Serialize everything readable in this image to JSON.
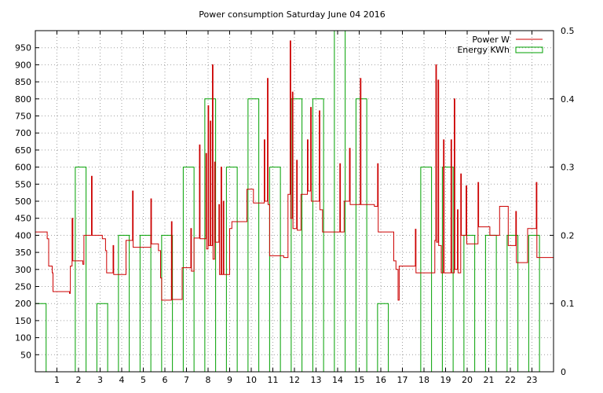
{
  "chart_data": {
    "type": "line",
    "title": "Power consumption Saturday June 04 2016",
    "xlabel": "",
    "ylabel": "",
    "xlim": [
      0,
      24
    ],
    "ylim": [
      0,
      1000
    ],
    "y2lim": [
      0,
      0.5
    ],
    "grid": true,
    "legend_position": "top-right",
    "x_ticks": [
      1,
      2,
      3,
      4,
      5,
      6,
      7,
      8,
      9,
      10,
      11,
      12,
      13,
      14,
      15,
      16,
      17,
      18,
      19,
      20,
      21,
      22,
      23
    ],
    "y_ticks": [
      50,
      100,
      150,
      200,
      250,
      300,
      350,
      400,
      450,
      500,
      550,
      600,
      650,
      700,
      750,
      800,
      850,
      900,
      950
    ],
    "y2_ticks": [
      0,
      0.1,
      0.2,
      0.3,
      0.4,
      0.5
    ],
    "series": [
      {
        "name": "Power W",
        "color": "#cc0000",
        "axis": "left",
        "points": [
          [
            0.0,
            410
          ],
          [
            0.55,
            410
          ],
          [
            0.55,
            390
          ],
          [
            0.62,
            390
          ],
          [
            0.62,
            310
          ],
          [
            0.78,
            310
          ],
          [
            0.78,
            290
          ],
          [
            0.82,
            290
          ],
          [
            0.82,
            235
          ],
          [
            1.58,
            235
          ],
          [
            1.58,
            230
          ],
          [
            1.62,
            230
          ],
          [
            1.62,
            310
          ],
          [
            1.7,
            310
          ],
          [
            1.7,
            450
          ],
          [
            1.74,
            450
          ],
          [
            1.74,
            325
          ],
          [
            2.2,
            325
          ],
          [
            2.2,
            315
          ],
          [
            2.25,
            315
          ],
          [
            2.25,
            400
          ],
          [
            2.6,
            400
          ],
          [
            2.6,
            573
          ],
          [
            2.63,
            573
          ],
          [
            2.63,
            400
          ],
          [
            3.1,
            400
          ],
          [
            3.1,
            390
          ],
          [
            3.25,
            390
          ],
          [
            3.25,
            355
          ],
          [
            3.3,
            355
          ],
          [
            3.3,
            290
          ],
          [
            3.6,
            290
          ],
          [
            3.6,
            370
          ],
          [
            3.63,
            370
          ],
          [
            3.63,
            285
          ],
          [
            4.2,
            285
          ],
          [
            4.2,
            385
          ],
          [
            4.5,
            385
          ],
          [
            4.5,
            530
          ],
          [
            4.53,
            530
          ],
          [
            4.53,
            365
          ],
          [
            5.35,
            365
          ],
          [
            5.35,
            507
          ],
          [
            5.38,
            507
          ],
          [
            5.38,
            375
          ],
          [
            5.7,
            375
          ],
          [
            5.7,
            355
          ],
          [
            5.8,
            355
          ],
          [
            5.8,
            275
          ],
          [
            5.85,
            275
          ],
          [
            5.85,
            210
          ],
          [
            6.3,
            210
          ],
          [
            6.3,
            440
          ],
          [
            6.33,
            440
          ],
          [
            6.33,
            212
          ],
          [
            6.8,
            212
          ],
          [
            6.8,
            305
          ],
          [
            7.2,
            305
          ],
          [
            7.2,
            420
          ],
          [
            7.23,
            420
          ],
          [
            7.23,
            295
          ],
          [
            7.35,
            295
          ],
          [
            7.35,
            392
          ],
          [
            7.6,
            392
          ],
          [
            7.6,
            665
          ],
          [
            7.63,
            665
          ],
          [
            7.63,
            390
          ],
          [
            7.9,
            390
          ],
          [
            7.9,
            640
          ],
          [
            7.93,
            640
          ],
          [
            7.93,
            360
          ],
          [
            8.0,
            360
          ],
          [
            8.0,
            780
          ],
          [
            8.03,
            780
          ],
          [
            8.03,
            370
          ],
          [
            8.1,
            370
          ],
          [
            8.1,
            735
          ],
          [
            8.13,
            735
          ],
          [
            8.13,
            370
          ],
          [
            8.2,
            370
          ],
          [
            8.2,
            900
          ],
          [
            8.23,
            900
          ],
          [
            8.23,
            330
          ],
          [
            8.3,
            330
          ],
          [
            8.3,
            615
          ],
          [
            8.33,
            615
          ],
          [
            8.33,
            380
          ],
          [
            8.5,
            380
          ],
          [
            8.5,
            490
          ],
          [
            8.53,
            490
          ],
          [
            8.53,
            285
          ],
          [
            8.6,
            285
          ],
          [
            8.6,
            600
          ],
          [
            8.63,
            600
          ],
          [
            8.63,
            285
          ],
          [
            8.7,
            285
          ],
          [
            8.7,
            500
          ],
          [
            8.73,
            500
          ],
          [
            8.73,
            285
          ],
          [
            9.0,
            285
          ],
          [
            9.0,
            420
          ],
          [
            9.1,
            420
          ],
          [
            9.1,
            440
          ],
          [
            9.8,
            440
          ],
          [
            9.8,
            535
          ],
          [
            10.1,
            535
          ],
          [
            10.1,
            495
          ],
          [
            10.6,
            495
          ],
          [
            10.6,
            680
          ],
          [
            10.63,
            680
          ],
          [
            10.63,
            500
          ],
          [
            10.75,
            500
          ],
          [
            10.75,
            860
          ],
          [
            10.78,
            860
          ],
          [
            10.78,
            490
          ],
          [
            10.85,
            490
          ],
          [
            10.85,
            340
          ],
          [
            11.5,
            340
          ],
          [
            11.5,
            335
          ],
          [
            11.7,
            335
          ],
          [
            11.7,
            520
          ],
          [
            11.8,
            520
          ],
          [
            11.8,
            970
          ],
          [
            11.83,
            970
          ],
          [
            11.83,
            450
          ],
          [
            11.9,
            450
          ],
          [
            11.9,
            820
          ],
          [
            11.93,
            820
          ],
          [
            11.93,
            420
          ],
          [
            12.1,
            420
          ],
          [
            12.1,
            620
          ],
          [
            12.13,
            620
          ],
          [
            12.13,
            415
          ],
          [
            12.3,
            415
          ],
          [
            12.3,
            520
          ],
          [
            12.6,
            520
          ],
          [
            12.6,
            680
          ],
          [
            12.63,
            680
          ],
          [
            12.63,
            530
          ],
          [
            12.75,
            530
          ],
          [
            12.75,
            775
          ],
          [
            12.78,
            775
          ],
          [
            12.78,
            500
          ],
          [
            13.15,
            500
          ],
          [
            13.15,
            765
          ],
          [
            13.18,
            765
          ],
          [
            13.18,
            475
          ],
          [
            13.3,
            475
          ],
          [
            13.3,
            410
          ],
          [
            14.1,
            410
          ],
          [
            14.1,
            610
          ],
          [
            14.13,
            610
          ],
          [
            14.13,
            410
          ],
          [
            14.3,
            410
          ],
          [
            14.3,
            500
          ],
          [
            14.55,
            500
          ],
          [
            14.55,
            655
          ],
          [
            14.58,
            655
          ],
          [
            14.58,
            490
          ],
          [
            15.05,
            490
          ],
          [
            15.05,
            860
          ],
          [
            15.08,
            860
          ],
          [
            15.08,
            490
          ],
          [
            15.7,
            490
          ],
          [
            15.7,
            485
          ],
          [
            15.85,
            485
          ],
          [
            15.85,
            610
          ],
          [
            15.88,
            610
          ],
          [
            15.88,
            410
          ],
          [
            16.6,
            410
          ],
          [
            16.6,
            325
          ],
          [
            16.7,
            325
          ],
          [
            16.7,
            300
          ],
          [
            16.8,
            300
          ],
          [
            16.8,
            210
          ],
          [
            16.85,
            210
          ],
          [
            16.85,
            310
          ],
          [
            17.6,
            310
          ],
          [
            17.6,
            418
          ],
          [
            17.63,
            418
          ],
          [
            17.63,
            290
          ],
          [
            18.5,
            290
          ],
          [
            18.5,
            385
          ],
          [
            18.55,
            385
          ],
          [
            18.55,
            900
          ],
          [
            18.58,
            900
          ],
          [
            18.58,
            380
          ],
          [
            18.65,
            380
          ],
          [
            18.65,
            855
          ],
          [
            18.68,
            855
          ],
          [
            18.68,
            370
          ],
          [
            18.8,
            370
          ],
          [
            18.8,
            290
          ],
          [
            18.9,
            290
          ],
          [
            18.9,
            680
          ],
          [
            18.93,
            680
          ],
          [
            18.93,
            290
          ],
          [
            19.25,
            290
          ],
          [
            19.25,
            680
          ],
          [
            19.28,
            680
          ],
          [
            19.28,
            290
          ],
          [
            19.4,
            290
          ],
          [
            19.4,
            800
          ],
          [
            19.43,
            800
          ],
          [
            19.43,
            300
          ],
          [
            19.55,
            300
          ],
          [
            19.55,
            475
          ],
          [
            19.58,
            475
          ],
          [
            19.58,
            290
          ],
          [
            19.7,
            290
          ],
          [
            19.7,
            580
          ],
          [
            19.73,
            580
          ],
          [
            19.73,
            400
          ],
          [
            19.95,
            400
          ],
          [
            19.95,
            545
          ],
          [
            19.98,
            545
          ],
          [
            19.98,
            375
          ],
          [
            20.5,
            375
          ],
          [
            20.5,
            555
          ],
          [
            20.53,
            555
          ],
          [
            20.53,
            425
          ],
          [
            21.05,
            425
          ],
          [
            21.05,
            400
          ],
          [
            21.5,
            400
          ],
          [
            21.5,
            485
          ],
          [
            21.9,
            485
          ],
          [
            21.9,
            370
          ],
          [
            22.25,
            370
          ],
          [
            22.25,
            470
          ],
          [
            22.28,
            470
          ],
          [
            22.28,
            320
          ],
          [
            22.8,
            320
          ],
          [
            22.8,
            420
          ],
          [
            23.2,
            420
          ],
          [
            23.2,
            555
          ],
          [
            23.23,
            555
          ],
          [
            23.23,
            335
          ],
          [
            24.0,
            335
          ]
        ]
      },
      {
        "name": "Energy KWh",
        "color": "#00a000",
        "axis": "right",
        "style": "boxes",
        "bars": [
          [
            0.15,
            0.1
          ],
          [
            2.0,
            0.3
          ],
          [
            3.0,
            0.1
          ],
          [
            4.0,
            0.2
          ],
          [
            5.0,
            0.2
          ],
          [
            6.0,
            0.2
          ],
          [
            7.0,
            0.3
          ],
          [
            8.0,
            0.4
          ],
          [
            9.0,
            0.3
          ],
          [
            10.0,
            0.4
          ],
          [
            11.0,
            0.3
          ],
          [
            12.0,
            0.4
          ],
          [
            13.0,
            0.4
          ],
          [
            14.0,
            0.5
          ],
          [
            15.0,
            0.4
          ],
          [
            16.0,
            0.1
          ],
          [
            18.0,
            0.3
          ],
          [
            19.0,
            0.3
          ],
          [
            20.0,
            0.2
          ],
          [
            21.0,
            0.2
          ],
          [
            22.0,
            0.2
          ],
          [
            23.0,
            0.2
          ]
        ]
      }
    ]
  }
}
